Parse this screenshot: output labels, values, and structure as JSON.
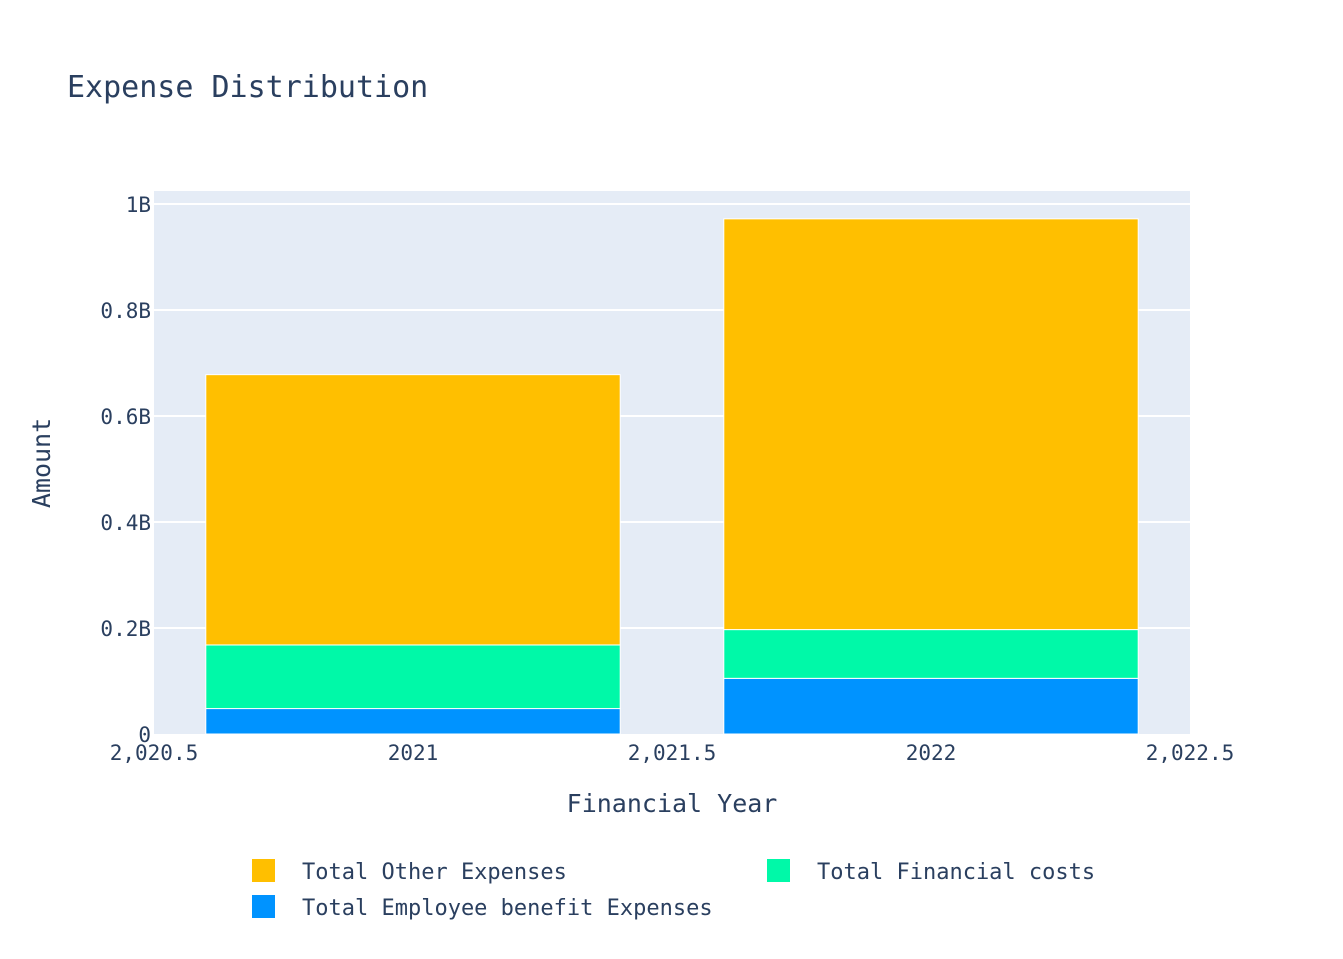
{
  "chart_data": {
    "type": "bar",
    "barmode": "stack",
    "title": "Expense Distribution",
    "xlabel": "Financial Year",
    "ylabel": "Amount",
    "categories": [
      2021,
      2022
    ],
    "xlim": [
      2020.5,
      2022.5
    ],
    "ylim": [
      0,
      1000000000
    ],
    "x_ticks": [
      {
        "value": 2020.5,
        "label": "2,020.5"
      },
      {
        "value": 2021,
        "label": "2021"
      },
      {
        "value": 2021.5,
        "label": "2,021.5"
      },
      {
        "value": 2022,
        "label": "2022"
      },
      {
        "value": 2022.5,
        "label": "2,022.5"
      }
    ],
    "y_ticks": [
      {
        "value": 0,
        "label": "0"
      },
      {
        "value": 200000000,
        "label": "0.2B"
      },
      {
        "value": 400000000,
        "label": "0.4B"
      },
      {
        "value": 600000000,
        "label": "0.6B"
      },
      {
        "value": 800000000,
        "label": "0.8B"
      },
      {
        "value": 1000000000,
        "label": "1B"
      }
    ],
    "series": [
      {
        "name": "Total Employee benefit Expenses",
        "color": "#0093ff",
        "values": [
          48000000,
          105000000
        ]
      },
      {
        "name": "Total Financial costs",
        "color": "#00f9a8",
        "values": [
          120000000,
          92000000
        ]
      },
      {
        "name": "Total Other Expenses",
        "color": "#ffbf00",
        "values": [
          510000000,
          775000000
        ]
      }
    ],
    "legend": {
      "placement": "bottom",
      "order": [
        "Total Other Expenses",
        "Total Financial costs",
        "Total Employee benefit Expenses"
      ]
    },
    "grid": true,
    "colors": {
      "plot_background": "#e5ecf6",
      "grid": "#ffffff",
      "text": "#2a3f5f"
    }
  }
}
